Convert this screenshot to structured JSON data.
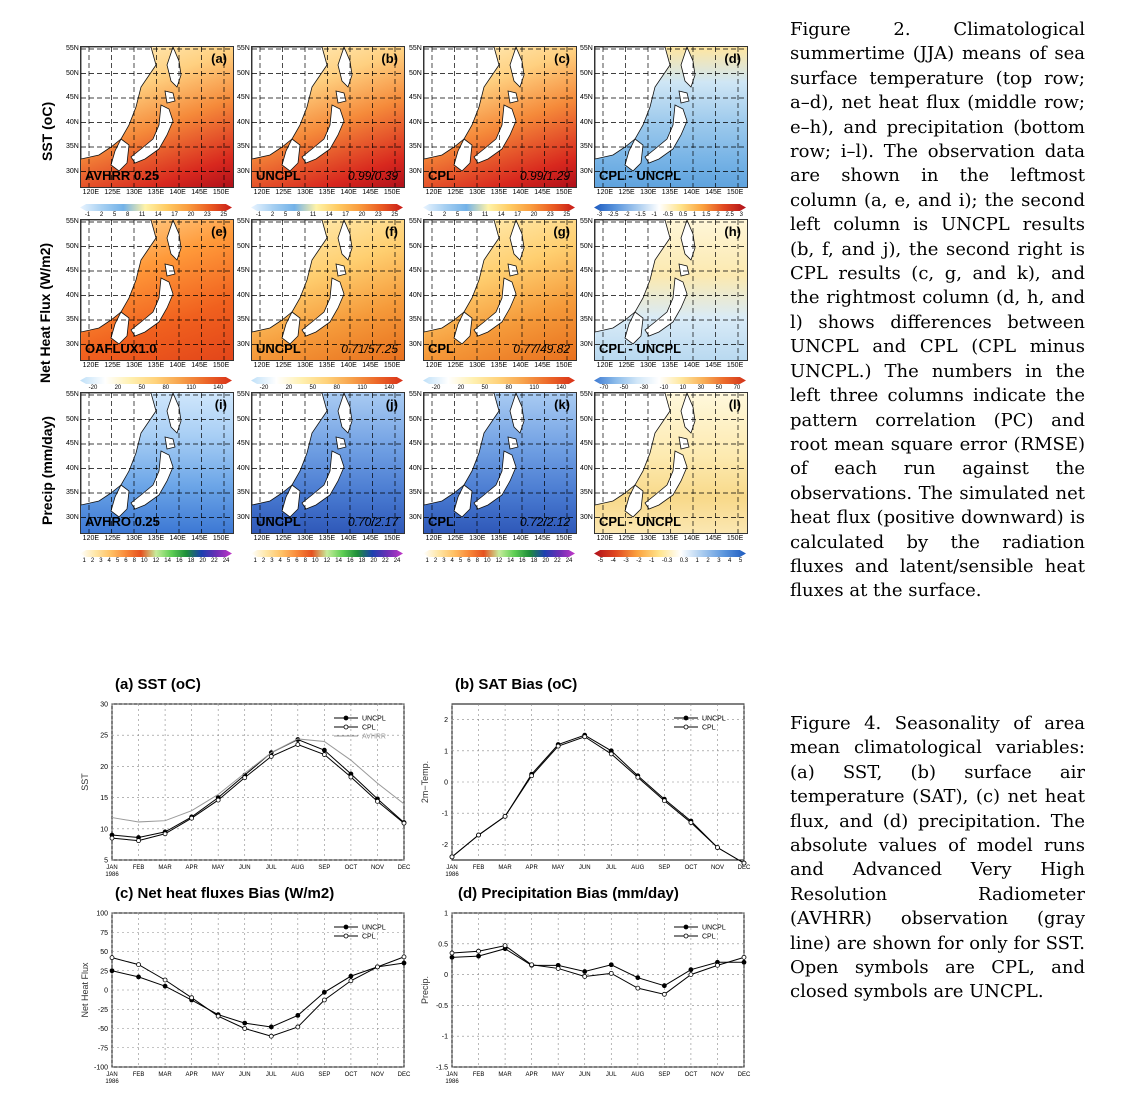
{
  "figure2": {
    "row_labels": [
      "SST (oC)",
      "Net Heat Flux (W/m2)",
      "Precip (mm/day)"
    ],
    "lat_labels": [
      "55N",
      "50N",
      "45N",
      "40N",
      "35N",
      "30N"
    ],
    "lon_labels": [
      "120E",
      "125E",
      "130E",
      "135E",
      "140E",
      "145E",
      "150E"
    ],
    "panels": [
      {
        "tag": "(a)",
        "bl": "AVHRR 0.25",
        "br": "",
        "palette": "warm",
        "row": 0,
        "col": 0
      },
      {
        "tag": "(b)",
        "bl": "UNCPL",
        "br": "0.99/0.39",
        "palette": "warm",
        "row": 0,
        "col": 1
      },
      {
        "tag": "(c)",
        "bl": "CPL",
        "br": "0.99/1.29",
        "palette": "warm",
        "row": 0,
        "col": 2
      },
      {
        "tag": "(d)",
        "bl": "CPL - UNCPL",
        "br": "",
        "palette": "diff",
        "row": 0,
        "col": 3
      },
      {
        "tag": "(e)",
        "bl": "OAFLUX1.0",
        "br": "",
        "palette": "hot",
        "row": 1,
        "col": 0
      },
      {
        "tag": "(f)",
        "bl": "UNCPL",
        "br": "0.71/57.25",
        "palette": "flux",
        "row": 1,
        "col": 1
      },
      {
        "tag": "(g)",
        "bl": "CPL",
        "br": "0.77/49.82",
        "palette": "flux",
        "row": 1,
        "col": 2
      },
      {
        "tag": "(h)",
        "bl": "CPL - UNCPL",
        "br": "",
        "palette": "fluxdiff",
        "row": 1,
        "col": 3
      },
      {
        "tag": "(i)",
        "bl": "AVHRO 0.25",
        "br": "",
        "palette": "wet",
        "row": 2,
        "col": 0
      },
      {
        "tag": "(j)",
        "bl": "UNCPL",
        "br": "0.70/2.17",
        "palette": "wet2",
        "row": 2,
        "col": 1
      },
      {
        "tag": "(k)",
        "bl": "CPL",
        "br": "0.72/2.12",
        "palette": "wet2",
        "row": 2,
        "col": 2
      },
      {
        "tag": "(l)",
        "bl": "CPL - UNCPL",
        "br": "",
        "palette": "pdiff",
        "row": 2,
        "col": 3
      }
    ],
    "colorbars": [
      {
        "labels": [
          "-1",
          "2",
          "5",
          "8",
          "11",
          "14",
          "17",
          "20",
          "23",
          "25"
        ]
      },
      {
        "labels": [
          "-1",
          "2",
          "5",
          "8",
          "11",
          "14",
          "17",
          "20",
          "23",
          "25"
        ]
      },
      {
        "labels": [
          "-1",
          "2",
          "5",
          "8",
          "11",
          "14",
          "17",
          "20",
          "23",
          "25"
        ]
      },
      {
        "labels": [
          "-3",
          "-2.5",
          "-2",
          "-1.5",
          "-1",
          "-0.5",
          "0.5",
          "1",
          "1.5",
          "2",
          "2.5",
          "3"
        ]
      },
      {
        "labels": [
          "-20",
          "20",
          "50",
          "80",
          "110",
          "140"
        ]
      },
      {
        "labels": [
          "-20",
          "20",
          "50",
          "80",
          "110",
          "140"
        ]
      },
      {
        "labels": [
          "-20",
          "20",
          "50",
          "80",
          "110",
          "140"
        ]
      },
      {
        "labels": [
          "-70",
          "-50",
          "-30",
          "-10",
          "10",
          "30",
          "50",
          "70"
        ]
      },
      {
        "labels": [
          "1",
          "2",
          "3",
          "4",
          "5",
          "6",
          "8",
          "10",
          "12",
          "14",
          "16",
          "18",
          "20",
          "22",
          "24"
        ]
      },
      {
        "labels": [
          "1",
          "2",
          "3",
          "4",
          "5",
          "6",
          "8",
          "10",
          "12",
          "14",
          "16",
          "18",
          "20",
          "22",
          "24"
        ]
      },
      {
        "labels": [
          "1",
          "2",
          "3",
          "4",
          "5",
          "6",
          "8",
          "10",
          "12",
          "14",
          "16",
          "18",
          "20",
          "22",
          "24"
        ]
      },
      {
        "labels": [
          "-5",
          "-4",
          "-3",
          "-2",
          "-1",
          "-0.3",
          "0.3",
          "1",
          "2",
          "3",
          "4",
          "5"
        ]
      }
    ],
    "caption": "Figure 2. Climatological summertime (JJA) means of sea surface temperature (top row; a–d), net heat flux (middle row; e–h), and precipitation (bottom row; i–l). The observation data are shown in the leftmost column (a, e, and i); the second left column is UNCPL results (b, f, and j), the second right is CPL results (c, g, and k), and the rightmost column (d, h, and l) shows differences between UNCPL and CPL (CPL minus UNCPL.) The numbers in the left three columns indicate the pattern correlation (PC) and root mean square error (RMSE) of each run against the observations. The simulated net heat flux (positive downward) is calculated by the radiation fluxes and latent/sensible heat fluxes at the surface."
  },
  "figure4": {
    "caption": "Figure 4. Seasonality of area mean climatological variables: (a) SST, (b) surface air temperature (SAT), (c) net heat flux, and (d) precipitation. The absolute values of model runs and Advanced Very High Resolution Radiometer (AVHRR) observation (gray line) are shown for only for SST. Open symbols are CPL, and closed symbols are UNCPL."
  },
  "chart_data": [
    {
      "type": "line",
      "title": "(a) SST (oC)",
      "ylabel": "SST",
      "xlabel": "",
      "categories": [
        "JAN\n1986",
        "FEB",
        "MAR",
        "APR",
        "MAY",
        "JUN",
        "JUL",
        "AUG",
        "SEP",
        "OCT",
        "NOV",
        "DEC"
      ],
      "ylim": [
        5,
        30
      ],
      "yticks": [
        5,
        10,
        15,
        20,
        25,
        30
      ],
      "grid": true,
      "legend": "top-right",
      "series": [
        {
          "name": "UNCPL",
          "values": [
            9.0,
            8.6,
            9.5,
            11.9,
            15.0,
            18.6,
            22.2,
            24.3,
            22.6,
            18.8,
            14.8,
            11.0
          ],
          "marker": "closed",
          "color": "#000"
        },
        {
          "name": "CPL",
          "values": [
            8.5,
            8.1,
            9.2,
            11.7,
            14.6,
            18.2,
            21.6,
            23.5,
            21.9,
            18.3,
            14.4,
            10.9
          ],
          "marker": "open",
          "color": "#000"
        },
        {
          "name": "AVHRR",
          "values": [
            11.8,
            11.1,
            11.3,
            12.9,
            15.5,
            18.9,
            22.2,
            24.4,
            24.0,
            21.0,
            17.3,
            14.0
          ],
          "marker": "none",
          "color": "#999"
        }
      ]
    },
    {
      "type": "line",
      "title": "(b) SAT Bias (oC)",
      "ylabel": "2m−Temp.",
      "xlabel": "",
      "categories": [
        "JAN\n1986",
        "FEB",
        "MAR",
        "APR",
        "MAY",
        "JUN",
        "JUL",
        "AUG",
        "SEP",
        "OCT",
        "NOV",
        "DEC"
      ],
      "ylim": [
        -2.5,
        2.5
      ],
      "yticks": [
        -2,
        -1,
        0,
        1,
        2
      ],
      "grid": true,
      "legend": "top-right",
      "series": [
        {
          "name": "UNCPL",
          "values": [
            -2.4,
            -1.7,
            -1.1,
            0.25,
            1.2,
            1.5,
            1.0,
            0.2,
            -0.55,
            -1.25,
            -2.1,
            -2.6
          ],
          "marker": "closed",
          "color": "#000"
        },
        {
          "name": "CPL",
          "values": [
            -2.4,
            -1.7,
            -1.1,
            0.2,
            1.15,
            1.45,
            0.9,
            0.15,
            -0.6,
            -1.3,
            -2.1,
            -2.6
          ],
          "marker": "open",
          "color": "#000"
        }
      ]
    },
    {
      "type": "line",
      "title": "(c) Net heat fluxes Bias (W/m2)",
      "ylabel": "Net Heat Flux",
      "xlabel": "",
      "categories": [
        "JAN\n1986",
        "FEB",
        "MAR",
        "APR",
        "MAY",
        "JUN",
        "JUL",
        "AUG",
        "SEP",
        "OCT",
        "NOV",
        "DEC"
      ],
      "ylim": [
        -100,
        100
      ],
      "yticks": [
        -100,
        -75,
        -50,
        -25,
        0,
        25,
        50,
        75,
        100
      ],
      "grid": true,
      "legend": "top-right",
      "series": [
        {
          "name": "UNCPL",
          "values": [
            25,
            17,
            5,
            -13,
            -32,
            -43,
            -48,
            -33,
            -3,
            18,
            30,
            35
          ],
          "marker": "closed",
          "color": "#000"
        },
        {
          "name": "CPL",
          "values": [
            42,
            33,
            13,
            -10,
            -34,
            -50,
            -60,
            -48,
            -13,
            12,
            30,
            43
          ],
          "marker": "open",
          "color": "#000"
        }
      ]
    },
    {
      "type": "line",
      "title": "(d) Precipitation Bias (mm/day)",
      "ylabel": "Precip.",
      "xlabel": "",
      "categories": [
        "JAN\n1986",
        "FEB",
        "MAR",
        "APR",
        "MAY",
        "JUN",
        "JUL",
        "AUG",
        "SEP",
        "OCT",
        "NOV",
        "DEC"
      ],
      "ylim": [
        -1.5,
        1.0
      ],
      "yticks": [
        -1.5,
        -1,
        -0.5,
        0,
        0.5,
        1
      ],
      "grid": true,
      "legend": "top-right",
      "series": [
        {
          "name": "UNCPL",
          "values": [
            0.28,
            0.3,
            0.42,
            0.15,
            0.15,
            0.05,
            0.16,
            -0.05,
            -0.18,
            0.08,
            0.2,
            0.2
          ],
          "marker": "closed",
          "color": "#000"
        },
        {
          "name": "CPL",
          "values": [
            0.35,
            0.38,
            0.47,
            0.16,
            0.1,
            -0.03,
            0.02,
            -0.22,
            -0.32,
            0.0,
            0.15,
            0.28
          ],
          "marker": "open",
          "color": "#000"
        }
      ]
    }
  ]
}
